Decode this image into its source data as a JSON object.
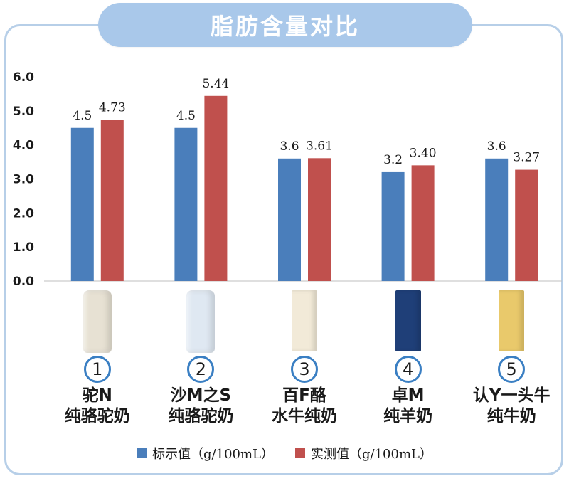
{
  "title": "脂肪含量对比",
  "chart_data": {
    "type": "bar",
    "ylim": [
      0,
      6
    ],
    "yticks": [
      "0.0",
      "1.0",
      "2.0",
      "3.0",
      "4.0",
      "5.0",
      "6.0"
    ],
    "categories": [
      "驼N 纯骆驼奶",
      "沙M之S 纯骆驼奶",
      "百F酪 水牛纯奶",
      "卓M 纯羊奶",
      "认Y一头牛 纯牛奶"
    ],
    "series": [
      {
        "name": "标示值（g/100mL）",
        "color": "#4a7ebb",
        "values": [
          4.5,
          4.5,
          3.6,
          3.2,
          3.6
        ],
        "labels": [
          "4.5",
          "4.5",
          "3.6",
          "3.2",
          "3.6"
        ]
      },
      {
        "name": "实测值（g/100mL）",
        "color": "#c0504d",
        "values": [
          4.73,
          5.44,
          3.61,
          3.4,
          3.27
        ],
        "labels": [
          "4.73",
          "5.44",
          "3.61",
          "3.40",
          "3.27"
        ]
      }
    ],
    "grid": false,
    "legend_position": "bottom"
  },
  "products": [
    {
      "number": "1",
      "line1": "驼N",
      "line2": "纯骆驼奶",
      "pkg": "can",
      "color": "#e7e1d3"
    },
    {
      "number": "2",
      "line1": "沙M之S",
      "line2": "纯骆驼奶",
      "pkg": "can",
      "color": "#dfe8f2"
    },
    {
      "number": "3",
      "line1": "百F酪",
      "line2": "水牛纯奶",
      "pkg": "box",
      "color": "#f2ead8"
    },
    {
      "number": "4",
      "line1": "卓M",
      "line2": "纯羊奶",
      "pkg": "box",
      "color": "#1f3f78"
    },
    {
      "number": "5",
      "line1": "认Y一头牛",
      "line2": "纯牛奶",
      "pkg": "box",
      "color": "#e9c96b"
    }
  ]
}
